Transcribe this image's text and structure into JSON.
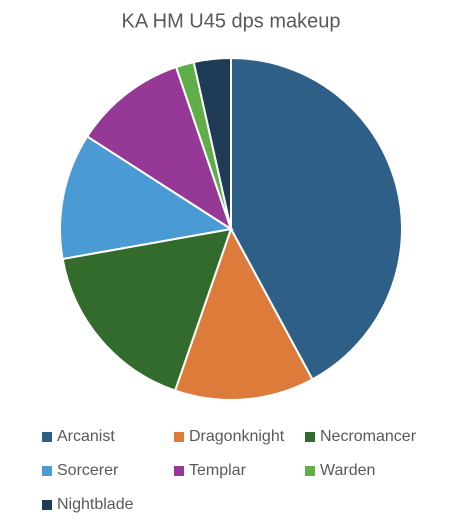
{
  "chart_data": {
    "type": "pie",
    "title": "KA HM U45 dps makeup",
    "categories": [
      "Arcanist",
      "Dragonknight",
      "Necromancer",
      "Sorcerer",
      "Templar",
      "Warden",
      "Nightblade"
    ],
    "values": [
      42.1,
      13.2,
      16.9,
      11.9,
      10.7,
      1.7,
      3.5
    ],
    "colors": [
      "#2e5f86",
      "#dd7b3b",
      "#336b2d",
      "#4a9ad3",
      "#953896",
      "#5fae48",
      "#1f3b56"
    ],
    "legend": "bottom"
  }
}
